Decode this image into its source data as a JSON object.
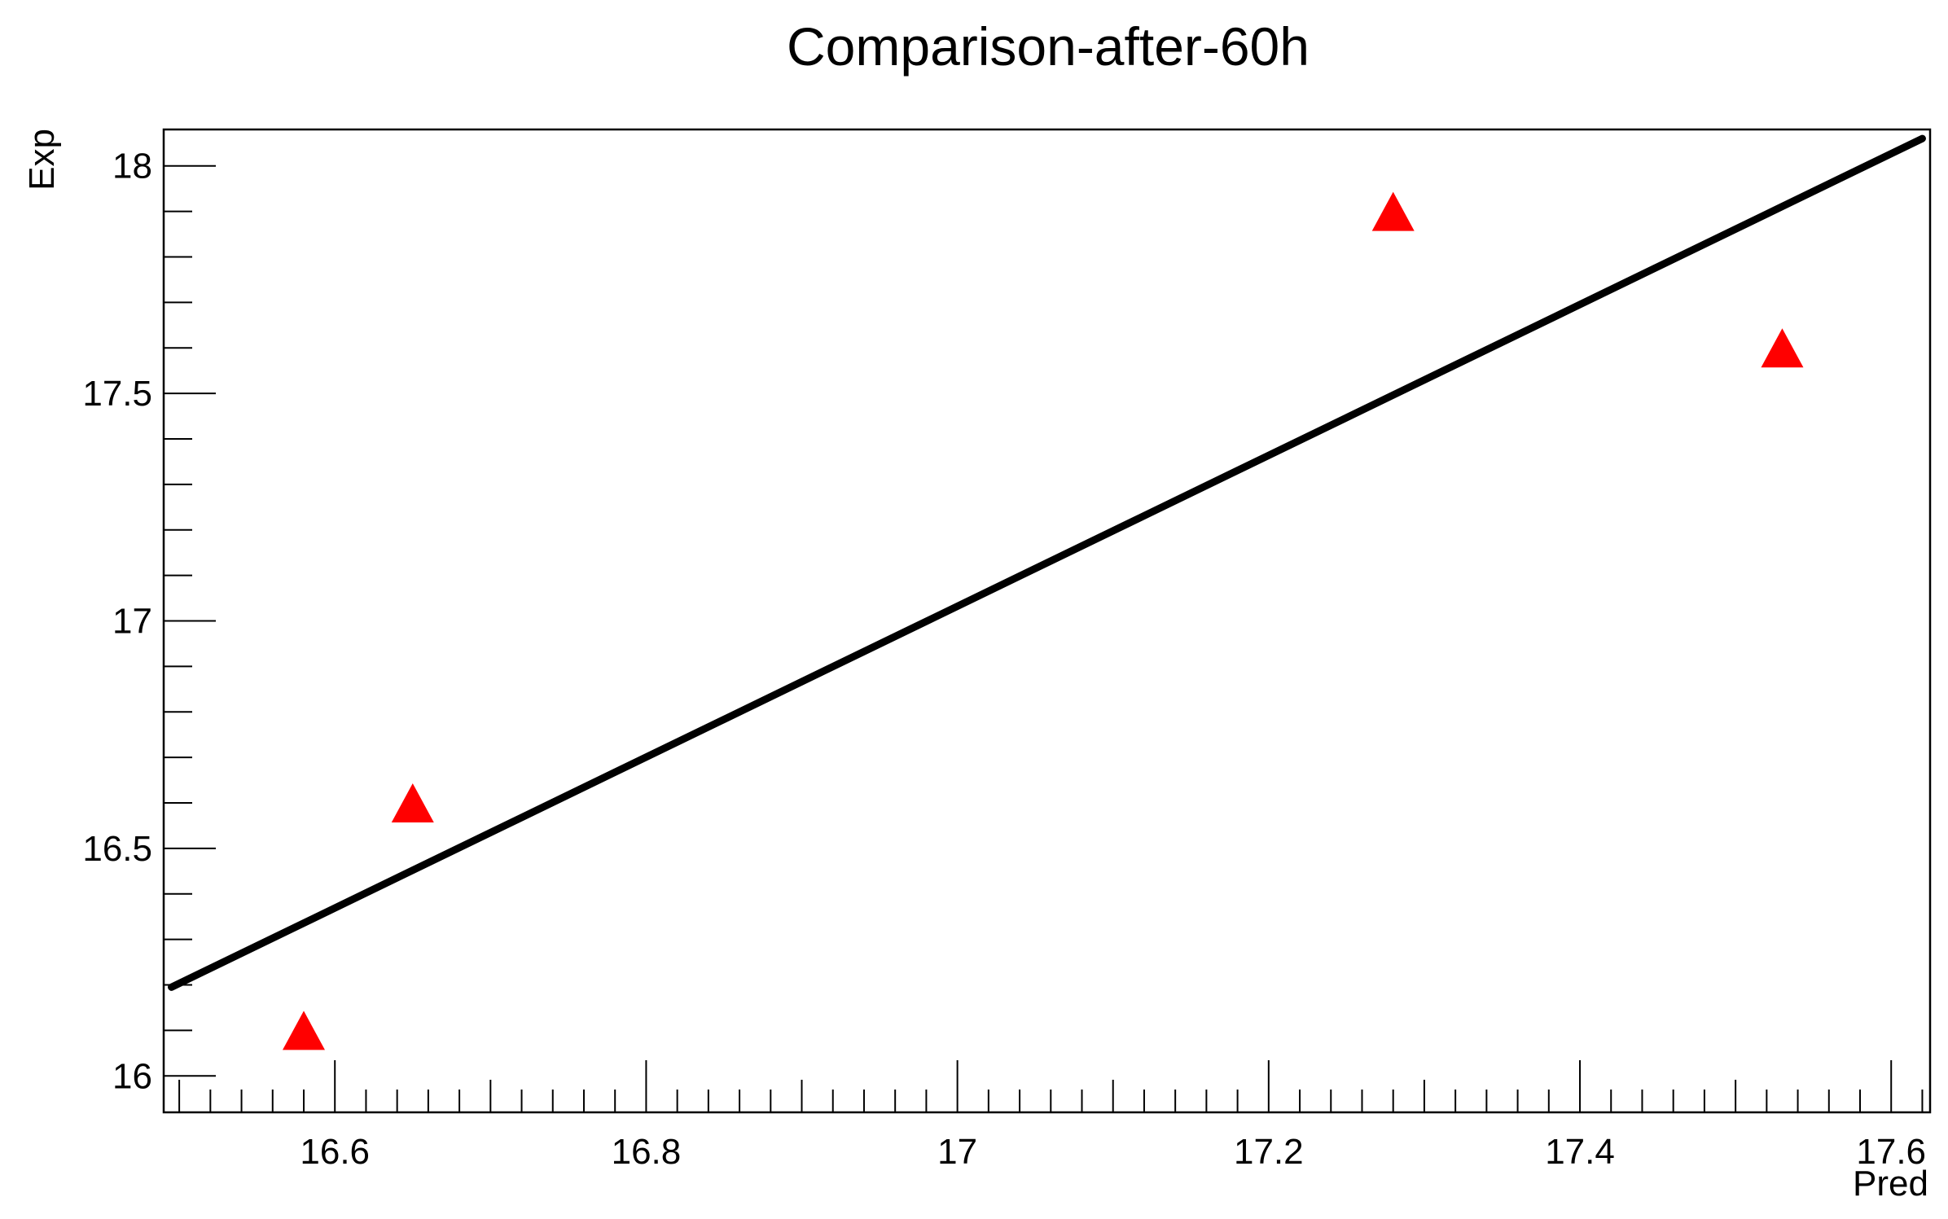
{
  "chart_data": {
    "type": "scatter",
    "title": "Comparison-after-60h",
    "xlabel": "Pred",
    "ylabel": "Exp",
    "xlim": [
      16.49,
      17.625
    ],
    "ylim": [
      15.92,
      18.08
    ],
    "x_ticks": [
      16.6,
      16.8,
      17.0,
      17.2,
      17.4,
      17.6
    ],
    "x_tick_labels": [
      "16.6",
      "16.8",
      "17",
      "17.2",
      "17.4",
      "17.6"
    ],
    "y_ticks": [
      16.0,
      16.5,
      17.0,
      17.5,
      18.0
    ],
    "y_tick_labels": [
      "16",
      "16.5",
      "17",
      "17.5",
      "18"
    ],
    "grid": false,
    "legend": "none",
    "series": [
      {
        "marker": "triangle-up",
        "color": "#ff0000",
        "points": [
          {
            "x": 16.58,
            "y": 16.1
          },
          {
            "x": 16.65,
            "y": 16.6
          },
          {
            "x": 17.28,
            "y": 17.9
          },
          {
            "x": 17.53,
            "y": 17.6
          }
        ]
      }
    ],
    "reference_line": {
      "color": "#000000",
      "from": {
        "x": 16.495,
        "y": 16.195
      },
      "to": {
        "x": 17.62,
        "y": 18.06
      }
    }
  }
}
